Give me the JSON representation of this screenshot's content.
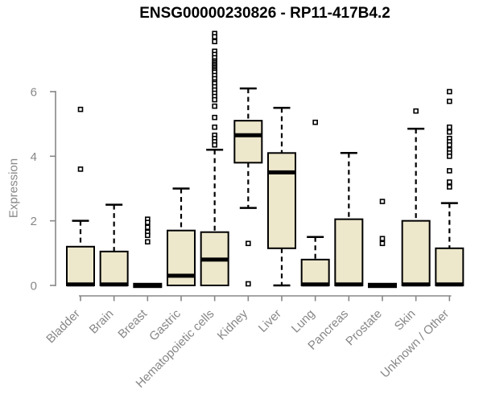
{
  "chart_data": {
    "type": "boxplot",
    "title": "ENSG00000230826 - RP11-417B4.2",
    "xlabel": "",
    "ylabel": "Expression",
    "yticks": [
      0,
      2,
      4,
      6
    ],
    "ylim": [
      0,
      7.9
    ],
    "grid": false,
    "legend": false,
    "categories": [
      "Bladder",
      "Brain",
      "Breast",
      "Gastric",
      "Hematopoietic cells",
      "Kidney",
      "Liver",
      "Lung",
      "Pancreas",
      "Prostate",
      "Skin",
      "Unknown / Other"
    ],
    "boxes": [
      {
        "category": "Bladder",
        "q1": 0,
        "median": 0.03,
        "q3": 1.2,
        "whisker_low": 0,
        "whisker_high": 2.0,
        "outliers": [
          5.45,
          3.6
        ]
      },
      {
        "category": "Brain",
        "q1": 0,
        "median": 0.03,
        "q3": 1.05,
        "whisker_low": 0,
        "whisker_high": 2.5,
        "outliers": []
      },
      {
        "category": "Breast",
        "q1": 0,
        "median": 0,
        "q3": 0,
        "whisker_low": 0,
        "whisker_high": 0,
        "outliers": [
          2.05,
          1.95,
          1.8,
          1.65,
          1.55,
          1.35
        ]
      },
      {
        "category": "Gastric",
        "q1": 0,
        "median": 0.3,
        "q3": 1.7,
        "whisker_low": 0,
        "whisker_high": 3.0,
        "outliers": []
      },
      {
        "category": "Hematopoietic cells",
        "q1": 0,
        "median": 0.8,
        "q3": 1.65,
        "whisker_low": 0,
        "whisker_high": 4.2,
        "outliers": [
          7.8,
          7.7,
          7.55,
          7.25,
          7.15,
          7.05,
          6.95,
          6.9,
          6.85,
          6.8,
          6.75,
          6.7,
          6.65,
          6.6,
          6.5,
          6.4,
          6.3,
          6.25,
          6.15,
          6.05,
          5.95,
          5.85,
          5.75,
          5.55,
          5.2,
          4.9,
          4.65,
          4.55,
          4.45,
          4.35
        ]
      },
      {
        "category": "Kidney",
        "q1": 3.8,
        "median": 4.65,
        "q3": 5.1,
        "whisker_low": 2.4,
        "whisker_high": 6.1,
        "outliers": [
          1.3,
          0.05
        ]
      },
      {
        "category": "Liver",
        "q1": 1.15,
        "median": 3.5,
        "q3": 4.1,
        "whisker_low": 0,
        "whisker_high": 5.5,
        "outliers": []
      },
      {
        "category": "Lung",
        "q1": 0,
        "median": 0.03,
        "q3": 0.8,
        "whisker_low": 0,
        "whisker_high": 1.5,
        "outliers": [
          5.05
        ]
      },
      {
        "category": "Pancreas",
        "q1": 0,
        "median": 0.03,
        "q3": 2.05,
        "whisker_low": 0,
        "whisker_high": 4.1,
        "outliers": []
      },
      {
        "category": "Prostate",
        "q1": 0,
        "median": 0,
        "q3": 0,
        "whisker_low": 0,
        "whisker_high": 0,
        "outliers": [
          2.6,
          1.45,
          1.3
        ]
      },
      {
        "category": "Skin",
        "q1": 0,
        "median": 0.03,
        "q3": 2.0,
        "whisker_low": 0,
        "whisker_high": 4.85,
        "outliers": [
          5.4
        ]
      },
      {
        "category": "Unknown / Other",
        "q1": 0,
        "median": 0.03,
        "q3": 1.15,
        "whisker_low": 0,
        "whisker_high": 2.55,
        "outliers": [
          6.0,
          5.7,
          4.9,
          4.75,
          4.55,
          4.45,
          4.35,
          4.2,
          4.1,
          4.0,
          3.55,
          3.2,
          3.05
        ]
      }
    ],
    "colors": {
      "box_fill": "#EDE7CB",
      "box_border": "#000000",
      "median": "#000000",
      "whisker": "#000000",
      "outlier": "#000000",
      "axis": "#878787",
      "tick_label": "#878787",
      "title": "#000000",
      "background": "#FFFFFF"
    }
  }
}
